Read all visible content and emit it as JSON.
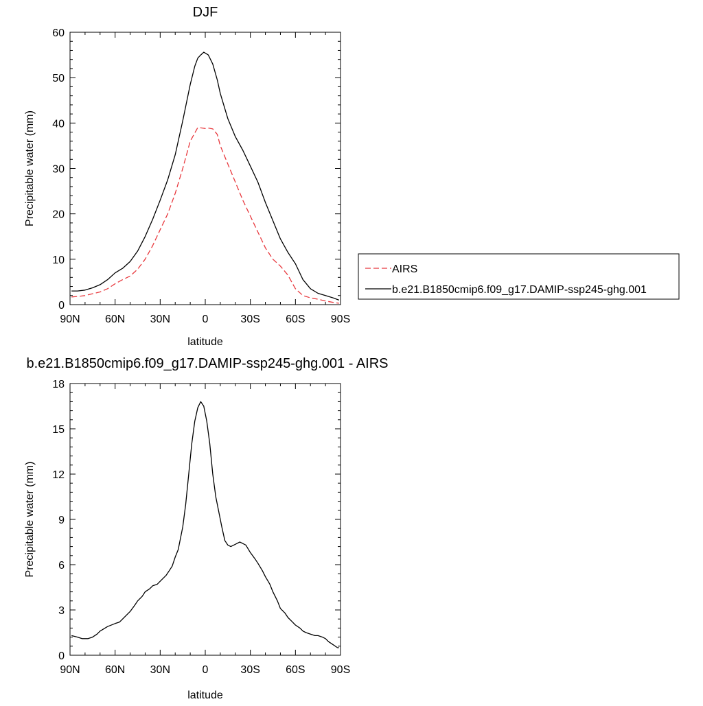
{
  "chart_data": [
    {
      "type": "line",
      "title": "DJF",
      "xlabel": "latitude",
      "ylabel": "Precipitable water (mm)",
      "xlim": [
        90,
        -90
      ],
      "ylim": [
        0,
        60
      ],
      "x_ticks": [
        90,
        60,
        30,
        0,
        -30,
        -60,
        -90
      ],
      "x_tick_labels": [
        "90N",
        "60N",
        "30N",
        "0",
        "30S",
        "60S",
        "90S"
      ],
      "y_ticks": [
        0,
        10,
        20,
        30,
        40,
        50,
        60
      ],
      "y_tick_labels": [
        "0",
        "10",
        "20",
        "30",
        "40",
        "50",
        "60"
      ],
      "legend_position": "right",
      "series": [
        {
          "name": "AIRS",
          "color": "#e8383d",
          "dash": "dashed",
          "x": [
            89,
            85,
            80,
            75,
            70,
            65,
            60,
            55,
            50,
            45,
            40,
            35,
            30,
            25,
            20,
            15,
            10,
            5,
            2,
            0,
            -2,
            -5,
            -8,
            -10,
            -15,
            -20,
            -25,
            -30,
            -35,
            -40,
            -45,
            -50,
            -55,
            -60,
            -65,
            -70,
            -75,
            -80,
            -85,
            -89
          ],
          "y": [
            1.7,
            1.8,
            2.0,
            2.4,
            2.8,
            3.5,
            4.6,
            5.5,
            6.3,
            7.8,
            10.0,
            13.0,
            16.5,
            20.0,
            24.5,
            30.0,
            36.0,
            39.0,
            38.9,
            38.8,
            38.9,
            38.7,
            37.5,
            35.0,
            31.0,
            27.0,
            23.0,
            19.5,
            16.0,
            12.5,
            10.0,
            8.5,
            6.5,
            3.5,
            2.0,
            1.5,
            1.2,
            0.8,
            0.5,
            0.3
          ]
        },
        {
          "name": "b.e21.B1850cmip6.f09_g17.DAMIP-ssp245-ghg.001",
          "color": "#000000",
          "dash": "solid",
          "x": [
            89,
            85,
            80,
            75,
            70,
            65,
            60,
            55,
            50,
            45,
            40,
            35,
            30,
            25,
            20,
            15,
            10,
            7,
            5,
            3,
            1,
            -2,
            -5,
            -8,
            -10,
            -15,
            -20,
            -25,
            -30,
            -35,
            -40,
            -45,
            -50,
            -55,
            -60,
            -65,
            -70,
            -75,
            -80,
            -85,
            -89
          ],
          "y": [
            3.0,
            3.0,
            3.2,
            3.7,
            4.4,
            5.5,
            7.0,
            8.0,
            9.5,
            11.8,
            15.0,
            18.8,
            23.0,
            27.5,
            33.0,
            40.5,
            48.5,
            52.5,
            54.3,
            55.0,
            55.6,
            55.0,
            53.0,
            49.5,
            46.5,
            41.0,
            37.0,
            34.0,
            30.5,
            27.0,
            22.5,
            18.5,
            14.5,
            11.5,
            9.0,
            5.5,
            3.5,
            2.5,
            2.0,
            1.5,
            1.0
          ]
        }
      ]
    },
    {
      "type": "line",
      "title": "b.e21.B1850cmip6.f09_g17.DAMIP-ssp245-ghg.001 - AIRS",
      "xlabel": "latitude",
      "ylabel": "Precipitable water (mm)",
      "xlim": [
        90,
        -90
      ],
      "ylim": [
        0,
        18
      ],
      "x_ticks": [
        90,
        60,
        30,
        0,
        -30,
        -60,
        -90
      ],
      "x_tick_labels": [
        "90N",
        "60N",
        "30N",
        "0",
        "30S",
        "60S",
        "90S"
      ],
      "y_ticks": [
        0,
        3,
        6,
        9,
        12,
        15,
        18
      ],
      "y_tick_labels": [
        "0",
        "3",
        "6",
        "9",
        "12",
        "15",
        "18"
      ],
      "series": [
        {
          "color": "#000000",
          "dash": "solid",
          "x": [
            89,
            85,
            82,
            80,
            78,
            75,
            72,
            70,
            65,
            60,
            57,
            55,
            50,
            47,
            45,
            42,
            40,
            37,
            35,
            32,
            30,
            28,
            26,
            24,
            22,
            20,
            18,
            17,
            15,
            13,
            11,
            9,
            7,
            5,
            3,
            1,
            -1,
            -3,
            -5,
            -7,
            -9,
            -11,
            -13,
            -15,
            -17,
            -19,
            -21,
            -23,
            -25,
            -27,
            -30,
            -33,
            -35,
            -38,
            -40,
            -43,
            -45,
            -48,
            -50,
            -53,
            -55,
            -58,
            -60,
            -63,
            -65,
            -67,
            -70,
            -73,
            -75,
            -78,
            -80,
            -82,
            -85,
            -88,
            -89
          ],
          "y": [
            1.3,
            1.2,
            1.1,
            1.1,
            1.1,
            1.2,
            1.4,
            1.6,
            1.9,
            2.1,
            2.2,
            2.4,
            2.9,
            3.3,
            3.6,
            3.9,
            4.2,
            4.4,
            4.6,
            4.7,
            4.9,
            5.1,
            5.3,
            5.6,
            5.9,
            6.5,
            7.0,
            7.5,
            8.5,
            10.0,
            12.0,
            14.0,
            15.5,
            16.4,
            16.8,
            16.5,
            15.5,
            14.0,
            12.0,
            10.5,
            9.5,
            8.5,
            7.6,
            7.3,
            7.2,
            7.3,
            7.4,
            7.5,
            7.4,
            7.3,
            6.8,
            6.4,
            6.1,
            5.6,
            5.2,
            4.7,
            4.2,
            3.6,
            3.1,
            2.8,
            2.5,
            2.2,
            2.0,
            1.8,
            1.6,
            1.5,
            1.4,
            1.3,
            1.3,
            1.2,
            1.1,
            0.9,
            0.7,
            0.5,
            0.5
          ]
        }
      ]
    }
  ]
}
